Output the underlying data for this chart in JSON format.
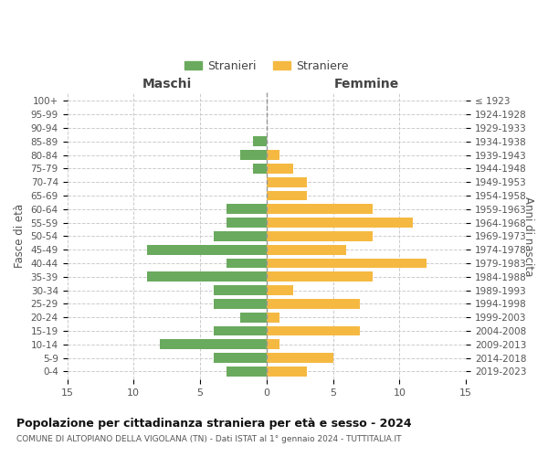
{
  "age_groups": [
    "100+",
    "95-99",
    "90-94",
    "85-89",
    "80-84",
    "75-79",
    "70-74",
    "65-69",
    "60-64",
    "55-59",
    "50-54",
    "45-49",
    "40-44",
    "35-39",
    "30-34",
    "25-29",
    "20-24",
    "15-19",
    "10-14",
    "5-9",
    "0-4"
  ],
  "birth_years": [
    "≤ 1923",
    "1924-1928",
    "1929-1933",
    "1934-1938",
    "1939-1943",
    "1944-1948",
    "1949-1953",
    "1954-1958",
    "1959-1963",
    "1964-1968",
    "1969-1973",
    "1974-1978",
    "1979-1983",
    "1984-1988",
    "1989-1993",
    "1994-1998",
    "1999-2003",
    "2004-2008",
    "2009-2013",
    "2014-2018",
    "2019-2023"
  ],
  "maschi": [
    0,
    0,
    0,
    1,
    2,
    1,
    0,
    0,
    3,
    3,
    4,
    9,
    3,
    9,
    4,
    4,
    2,
    4,
    8,
    4,
    3
  ],
  "femmine": [
    0,
    0,
    0,
    0,
    1,
    2,
    3,
    3,
    8,
    11,
    8,
    6,
    12,
    8,
    2,
    7,
    1,
    7,
    1,
    5,
    3
  ],
  "maschi_color": "#6aaa5e",
  "femmine_color": "#f5b942",
  "title": "Popolazione per cittadinanza straniera per età e sesso - 2024",
  "subtitle": "COMUNE DI ALTOPIANO DELLA VIGOLANA (TN) - Dati ISTAT al 1° gennaio 2024 - TUTTITALIA.IT",
  "xlabel_left": "Maschi",
  "xlabel_right": "Femmine",
  "ylabel_left": "Fasce di età",
  "ylabel_right": "Anni di nascita",
  "legend_stranieri": "Stranieri",
  "legend_straniere": "Straniere",
  "xlim": 15,
  "background_color": "#ffffff",
  "grid_color": "#cccccc"
}
